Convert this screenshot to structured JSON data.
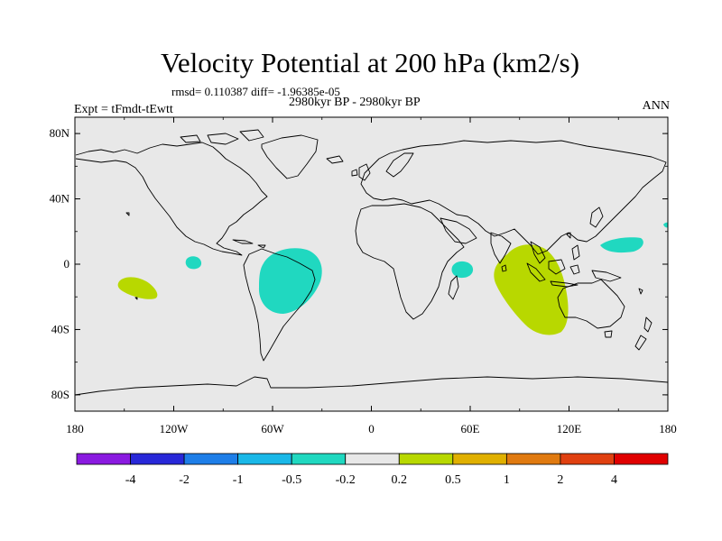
{
  "title": "Velocity Potential at 200 hPa (km2/s)",
  "stats": "rmsd= 0.110387 diff= -1.96385e-05",
  "period": "2980kyr BP - 2980kyr BP",
  "experiment": "Expt = tFmdt-tEwtt",
  "season": "ANN",
  "map": {
    "lat_ticks": [
      {
        "value": 80,
        "label": "80N"
      },
      {
        "value": 40,
        "label": "40N"
      },
      {
        "value": 0,
        "label": "0"
      },
      {
        "value": -40,
        "label": "40S"
      },
      {
        "value": -80,
        "label": "80S"
      }
    ],
    "lon_ticks": [
      {
        "value": -180,
        "label": "180"
      },
      {
        "value": -120,
        "label": "120W"
      },
      {
        "value": -60,
        "label": "60W"
      },
      {
        "value": 0,
        "label": "0"
      },
      {
        "value": 60,
        "label": "60E"
      },
      {
        "value": 120,
        "label": "120E"
      },
      {
        "value": 180,
        "label": "180"
      }
    ],
    "background_color": "#e8e8e8",
    "anomalies": [
      {
        "name": "south-america-negative",
        "level": "-0.5 to -0.2",
        "color": "#20d8c0",
        "center_lon": -53,
        "center_lat": -5
      },
      {
        "name": "east-pacific-negative",
        "level": "-0.5 to -0.2",
        "color": "#20d8c0",
        "center_lon": -106,
        "center_lat": 2
      },
      {
        "name": "east-africa-negative",
        "level": "-0.5 to -0.2",
        "color": "#20d8c0",
        "center_lon": 57,
        "center_lat": -3
      },
      {
        "name": "west-pacific-negative",
        "level": "-0.5 to -0.2",
        "color": "#20d8c0",
        "center_lon": 152,
        "center_lat": 13
      },
      {
        "name": "dateline-negative",
        "level": "-0.5 to -0.2",
        "color": "#20d8c0",
        "center_lon": 179,
        "center_lat": 23
      },
      {
        "name": "south-pacific-positive",
        "level": "0.2 to 0.5",
        "color": "#b8d800",
        "center_lon": -143,
        "center_lat": -12
      },
      {
        "name": "indian-ocean-positive",
        "level": "0.2 to 0.5",
        "color": "#b8d800",
        "center_lon": 100,
        "center_lat": -12
      }
    ]
  },
  "colorbar": {
    "colors": [
      "#8a1ae0",
      "#2828d8",
      "#1e7ee8",
      "#1ab8e8",
      "#20d8c0",
      "#e8e8e8",
      "#b8d800",
      "#e0b000",
      "#e07a10",
      "#e04010",
      "#e00000"
    ],
    "labels": [
      "-4",
      "-2",
      "-1",
      "-0.5",
      "-0.2",
      "0.2",
      "0.5",
      "1",
      "2",
      "4"
    ]
  }
}
